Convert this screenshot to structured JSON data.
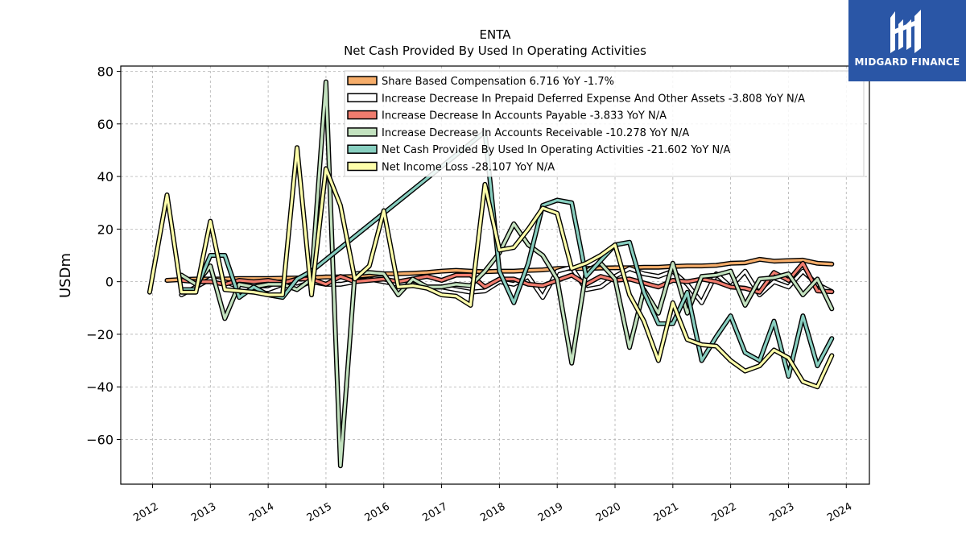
{
  "brand": {
    "name": "MIDGARD FINANCE",
    "color": "#2a56a6"
  },
  "chart_data": {
    "type": "line",
    "title": "ENTA",
    "subtitle": "Net Cash Provided By Used In Operating Activities",
    "ylabel": "USDm",
    "xlabel": "",
    "ylim": [
      -77,
      82
    ],
    "xlim": [
      2011.45,
      2024.4
    ],
    "yticks": [
      80,
      60,
      40,
      20,
      0,
      -20,
      -40,
      -60
    ],
    "ytick_labels": [
      "80",
      "60",
      "40",
      "20",
      "0",
      "−20",
      "−40",
      "−60"
    ],
    "xticks": [
      2012,
      2013,
      2014,
      2015,
      2016,
      2017,
      2018,
      2019,
      2020,
      2021,
      2022,
      2023,
      2024
    ],
    "xtick_labels": [
      "2012",
      "2013",
      "2014",
      "2015",
      "2016",
      "2017",
      "2018",
      "2019",
      "2020",
      "2021",
      "2022",
      "2023",
      "2024"
    ],
    "grid": true,
    "legend_position": "top-right",
    "series": [
      {
        "name": "Share Based Compensation",
        "legend": "Share Based Compensation  6.716 YoY -1.7%",
        "color": "#f6ad6a",
        "points": [
          [
            2012.25,
            0.5
          ],
          [
            2012.5,
            0.8
          ],
          [
            2012.75,
            1.0
          ],
          [
            2013.0,
            1.0
          ],
          [
            2013.25,
            1.0
          ],
          [
            2013.5,
            1.2
          ],
          [
            2013.75,
            1.2
          ],
          [
            2014.0,
            1.2
          ],
          [
            2014.25,
            1.3
          ],
          [
            2014.5,
            1.4
          ],
          [
            2014.75,
            1.5
          ],
          [
            2015.0,
            1.8
          ],
          [
            2015.25,
            1.8
          ],
          [
            2015.5,
            2.0
          ],
          [
            2015.75,
            2.5
          ],
          [
            2016.0,
            3.0
          ],
          [
            2016.25,
            3.0
          ],
          [
            2016.5,
            3.2
          ],
          [
            2016.75,
            3.5
          ],
          [
            2017.0,
            4.0
          ],
          [
            2017.25,
            4.3
          ],
          [
            2017.5,
            4.0
          ],
          [
            2017.75,
            3.8
          ],
          [
            2018.0,
            4.0
          ],
          [
            2018.25,
            4.0
          ],
          [
            2018.5,
            4.3
          ],
          [
            2018.75,
            4.5
          ],
          [
            2019.0,
            5.0
          ],
          [
            2019.25,
            5.0
          ],
          [
            2019.5,
            5.0
          ],
          [
            2019.75,
            5.2
          ],
          [
            2020.0,
            5.3
          ],
          [
            2020.25,
            5.3
          ],
          [
            2020.5,
            5.5
          ],
          [
            2020.75,
            5.5
          ],
          [
            2021.0,
            5.8
          ],
          [
            2021.25,
            6.0
          ],
          [
            2021.5,
            6.0
          ],
          [
            2021.75,
            6.2
          ],
          [
            2022.0,
            7.0
          ],
          [
            2022.25,
            7.2
          ],
          [
            2022.5,
            8.5
          ],
          [
            2022.75,
            7.8
          ],
          [
            2023.0,
            8.0
          ],
          [
            2023.25,
            8.2
          ],
          [
            2023.5,
            7.0
          ],
          [
            2023.75,
            6.7
          ]
        ]
      },
      {
        "name": "Increase Decrease In Prepaid Deferred Expense And Other Assets",
        "legend": "Increase Decrease In Prepaid Deferred Expense And Other Assets  -3.808 YoY N/A",
        "color": "#ffffff",
        "points": [
          [
            2012.5,
            -5.0
          ],
          [
            2012.75,
            -2.0
          ],
          [
            2013.0,
            1.0
          ],
          [
            2013.25,
            0.0
          ],
          [
            2013.5,
            -2.0
          ],
          [
            2013.75,
            -3.0
          ],
          [
            2014.0,
            -3.0
          ],
          [
            2014.25,
            -1.0
          ],
          [
            2014.5,
            -2.0
          ],
          [
            2014.75,
            0.0
          ],
          [
            2015.0,
            -1.0
          ],
          [
            2015.25,
            -1.0
          ],
          [
            2015.5,
            0.0
          ],
          [
            2015.75,
            1.0
          ],
          [
            2016.0,
            0.0
          ],
          [
            2016.25,
            -1.0
          ],
          [
            2016.5,
            -1.0
          ],
          [
            2016.75,
            -2.0
          ],
          [
            2017.0,
            -2.0
          ],
          [
            2017.25,
            -3.0
          ],
          [
            2017.5,
            -4.0
          ],
          [
            2017.75,
            -3.5
          ],
          [
            2018.0,
            0.0
          ],
          [
            2018.25,
            -1.0
          ],
          [
            2018.5,
            2.0
          ],
          [
            2018.75,
            -6.0
          ],
          [
            2019.0,
            4.0
          ],
          [
            2019.25,
            5.5
          ],
          [
            2019.5,
            -3.0
          ],
          [
            2019.75,
            -2.0
          ],
          [
            2020.0,
            2.0
          ],
          [
            2020.25,
            5.0
          ],
          [
            2020.5,
            3.0
          ],
          [
            2020.75,
            2.0
          ],
          [
            2021.0,
            4.0
          ],
          [
            2021.25,
            -1.0
          ],
          [
            2021.5,
            -8.0
          ],
          [
            2021.75,
            3.0
          ],
          [
            2022.0,
            -2.0
          ],
          [
            2022.25,
            4.0
          ],
          [
            2022.5,
            -5.0
          ],
          [
            2022.75,
            0.0
          ],
          [
            2023.0,
            -2.0
          ],
          [
            2023.25,
            4.0
          ],
          [
            2023.5,
            -1.0
          ],
          [
            2023.75,
            -3.8
          ]
        ]
      },
      {
        "name": "Increase Decrease In Accounts Payable",
        "legend": "Increase Decrease In Accounts Payable  -3.833 YoY N/A",
        "color": "#f07c6e",
        "points": [
          [
            2012.5,
            0.5
          ],
          [
            2012.75,
            0.0
          ],
          [
            2013.0,
            0.0
          ],
          [
            2013.25,
            -1.0
          ],
          [
            2013.5,
            0.5
          ],
          [
            2013.75,
            0.0
          ],
          [
            2014.0,
            0.5
          ],
          [
            2014.25,
            -0.5
          ],
          [
            2014.5,
            1.0
          ],
          [
            2014.75,
            1.0
          ],
          [
            2015.0,
            -1.0
          ],
          [
            2015.25,
            2.0
          ],
          [
            2015.5,
            0.0
          ],
          [
            2015.75,
            0.5
          ],
          [
            2016.0,
            1.0
          ],
          [
            2016.25,
            0.0
          ],
          [
            2016.5,
            1.0
          ],
          [
            2016.75,
            2.0
          ],
          [
            2017.0,
            0.5
          ],
          [
            2017.25,
            2.5
          ],
          [
            2017.5,
            2.5
          ],
          [
            2017.75,
            -2.0
          ],
          [
            2018.0,
            1.0
          ],
          [
            2018.25,
            1.0
          ],
          [
            2018.5,
            -1.0
          ],
          [
            2018.75,
            -1.5
          ],
          [
            2019.0,
            0.5
          ],
          [
            2019.25,
            2.5
          ],
          [
            2019.5,
            -1.0
          ],
          [
            2019.75,
            2.0
          ],
          [
            2020.0,
            0.5
          ],
          [
            2020.25,
            1.0
          ],
          [
            2020.5,
            -0.5
          ],
          [
            2020.75,
            -2.0
          ],
          [
            2021.0,
            0.5
          ],
          [
            2021.25,
            0.0
          ],
          [
            2021.5,
            1.0
          ],
          [
            2021.75,
            0.0
          ],
          [
            2022.0,
            -2.0
          ],
          [
            2022.25,
            -2.5
          ],
          [
            2022.5,
            -4.0
          ],
          [
            2022.75,
            3.5
          ],
          [
            2023.0,
            0.5
          ],
          [
            2023.25,
            7.0
          ],
          [
            2023.5,
            -3.5
          ],
          [
            2023.75,
            -3.8
          ]
        ]
      },
      {
        "name": "Increase Decrease In Accounts Receivable",
        "legend": "Increase Decrease In Accounts Receivable  -10.278 YoY N/A",
        "color": "#c3e2bf",
        "points": [
          [
            2012.5,
            2.5
          ],
          [
            2012.75,
            -1.0
          ],
          [
            2013.0,
            6.0
          ],
          [
            2013.25,
            -14.0
          ],
          [
            2013.5,
            -1.0
          ],
          [
            2013.75,
            -2.0
          ],
          [
            2014.0,
            -1.0
          ],
          [
            2014.25,
            -1.0
          ],
          [
            2014.5,
            -3.0
          ],
          [
            2014.75,
            1.0
          ],
          [
            2015.0,
            76.0
          ],
          [
            2015.25,
            -70.0
          ],
          [
            2015.5,
            3.0
          ],
          [
            2015.75,
            3.5
          ],
          [
            2016.0,
            3.0
          ],
          [
            2016.25,
            -5.0
          ],
          [
            2016.5,
            1.0
          ],
          [
            2016.75,
            -2.0
          ],
          [
            2017.0,
            -2.0
          ],
          [
            2017.25,
            -1.0
          ],
          [
            2017.5,
            -1.5
          ],
          [
            2017.75,
            4.0
          ],
          [
            2018.0,
            11.0
          ],
          [
            2018.25,
            22.0
          ],
          [
            2018.5,
            14.0
          ],
          [
            2018.75,
            10.0
          ],
          [
            2019.0,
            1.0
          ],
          [
            2019.25,
            -31.0
          ],
          [
            2019.5,
            4.0
          ],
          [
            2019.75,
            7.0
          ],
          [
            2020.0,
            1.0
          ],
          [
            2020.25,
            -25.0
          ],
          [
            2020.5,
            -3.0
          ],
          [
            2020.75,
            -12.0
          ],
          [
            2021.0,
            7.0
          ],
          [
            2021.25,
            -12.0
          ],
          [
            2021.5,
            2.0
          ],
          [
            2021.75,
            2.5
          ],
          [
            2022.0,
            4.0
          ],
          [
            2022.25,
            -9.0
          ],
          [
            2022.5,
            1.0
          ],
          [
            2022.75,
            1.5
          ],
          [
            2023.0,
            3.0
          ],
          [
            2023.25,
            -5.0
          ],
          [
            2023.5,
            1.0
          ],
          [
            2023.75,
            -10.3
          ]
        ]
      },
      {
        "name": "Net Cash Provided By Used In Operating Activities",
        "legend": "Net Cash Provided By Used In Operating Activities  -21.602 YoY N/A",
        "color": "#88cfc0",
        "points": [
          [
            2012.5,
            -3.0
          ],
          [
            2012.75,
            -3.0
          ],
          [
            2013.0,
            10.0
          ],
          [
            2013.25,
            10.0
          ],
          [
            2013.5,
            -6.0
          ],
          [
            2013.75,
            -2.0
          ],
          [
            2014.0,
            -5.0
          ],
          [
            2014.25,
            -6.0
          ],
          [
            2014.5,
            1.0
          ],
          [
            2014.75,
            4.0
          ],
          [
            2017.75,
            57.0
          ],
          [
            2018.0,
            4.0
          ],
          [
            2018.25,
            -8.0
          ],
          [
            2018.5,
            7.0
          ],
          [
            2018.75,
            29.0
          ],
          [
            2019.0,
            31.0
          ],
          [
            2019.25,
            30.0
          ],
          [
            2019.5,
            2.0
          ],
          [
            2019.75,
            8.0
          ],
          [
            2020.0,
            14.0
          ],
          [
            2020.25,
            15.0
          ],
          [
            2020.5,
            -4.0
          ],
          [
            2020.75,
            -16.0
          ],
          [
            2021.0,
            -16.0
          ],
          [
            2021.25,
            -4.0
          ],
          [
            2021.5,
            -30.0
          ],
          [
            2021.75,
            -21.0
          ],
          [
            2022.0,
            -13.0
          ],
          [
            2022.25,
            -27.0
          ],
          [
            2022.5,
            -30.0
          ],
          [
            2022.75,
            -15.0
          ],
          [
            2023.0,
            -36.0
          ],
          [
            2023.25,
            -13.0
          ],
          [
            2023.5,
            -32.0
          ],
          [
            2023.75,
            -21.6
          ]
        ]
      },
      {
        "name": "Net Income Loss",
        "legend": "Net Income Loss  -28.107 YoY N/A",
        "color": "#fdfeaa",
        "points": [
          [
            2011.95,
            -4.0
          ],
          [
            2012.25,
            33.0
          ],
          [
            2012.5,
            -4.0
          ],
          [
            2012.75,
            -4.0
          ],
          [
            2013.0,
            23.0
          ],
          [
            2013.25,
            -3.0
          ],
          [
            2013.5,
            -3.5
          ],
          [
            2013.75,
            -4.0
          ],
          [
            2014.0,
            -5.0
          ],
          [
            2014.25,
            -5.0
          ],
          [
            2014.5,
            51.0
          ],
          [
            2014.75,
            -5.0
          ],
          [
            2015.0,
            43.0
          ],
          [
            2015.25,
            29.0
          ],
          [
            2015.5,
            1.0
          ],
          [
            2015.75,
            6.0
          ],
          [
            2016.0,
            27.0
          ],
          [
            2016.25,
            -2.0
          ],
          [
            2016.5,
            -1.5
          ],
          [
            2016.75,
            -2.5
          ],
          [
            2017.0,
            -5.0
          ],
          [
            2017.25,
            -5.5
          ],
          [
            2017.5,
            -9.0
          ],
          [
            2017.75,
            37.0
          ],
          [
            2018.0,
            12.0
          ],
          [
            2018.25,
            13.0
          ],
          [
            2018.5,
            20.0
          ],
          [
            2018.75,
            28.0
          ],
          [
            2019.0,
            26.0
          ],
          [
            2019.25,
            5.0
          ],
          [
            2019.5,
            7.0
          ],
          [
            2019.75,
            10.0
          ],
          [
            2020.0,
            14.0
          ],
          [
            2020.25,
            -5.0
          ],
          [
            2020.5,
            -15.0
          ],
          [
            2020.75,
            -30.0
          ],
          [
            2021.0,
            -8.0
          ],
          [
            2021.25,
            -22.0
          ],
          [
            2021.5,
            -24.0
          ],
          [
            2021.75,
            -24.5
          ],
          [
            2022.0,
            -30.0
          ],
          [
            2022.25,
            -34.0
          ],
          [
            2022.5,
            -32.0
          ],
          [
            2022.75,
            -26.0
          ],
          [
            2023.0,
            -29.0
          ],
          [
            2023.25,
            -38.0
          ],
          [
            2023.5,
            -40.0
          ],
          [
            2023.75,
            -28.1
          ]
        ]
      }
    ]
  }
}
